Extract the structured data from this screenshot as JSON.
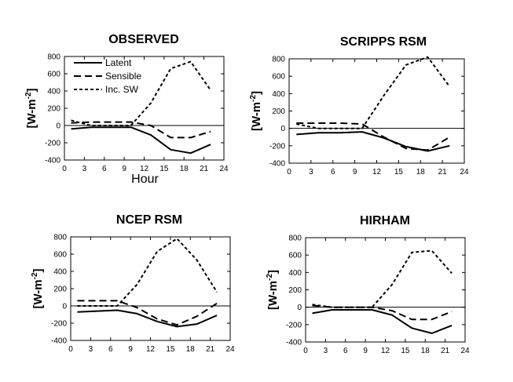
{
  "chart_data": [
    {
      "type": "line",
      "title": "OBSERVED",
      "xlabel": "Hour",
      "ylabel": "[W-m-2]",
      "xlim": [
        0,
        24
      ],
      "ylim": [
        -400,
        800
      ],
      "xticks": [
        "0",
        "3",
        "6",
        "9",
        "12",
        "15",
        "18",
        "21",
        "24"
      ],
      "yticks": [
        "-400",
        "-200",
        "0",
        "200",
        "400",
        "600",
        "800"
      ],
      "legend": "top-left",
      "series": [
        {
          "name": "Latent",
          "style": "solid",
          "x": [
            1,
            4,
            7,
            10,
            13,
            16,
            19,
            22
          ],
          "y": [
            -40,
            -20,
            -20,
            -20,
            -110,
            -280,
            -320,
            -220
          ]
        },
        {
          "name": "Sensible",
          "style": "dashed",
          "x": [
            1,
            4,
            7,
            10,
            13,
            16,
            19,
            22
          ],
          "y": [
            30,
            40,
            40,
            40,
            0,
            -140,
            -140,
            -70
          ]
        },
        {
          "name": "Inc. SW",
          "style": "dotted",
          "x": [
            1,
            4,
            7,
            10,
            13,
            16,
            19,
            22
          ],
          "y": [
            60,
            0,
            0,
            0,
            260,
            660,
            740,
            410
          ]
        }
      ]
    },
    {
      "type": "line",
      "title": "SCRIPPS RSM",
      "ylabel": "[W-m-2]",
      "xlim": [
        0,
        24
      ],
      "ylim": [
        -400,
        800
      ],
      "xticks": [
        "0",
        "3",
        "6",
        "9",
        "12",
        "15",
        "18",
        "21",
        "24"
      ],
      "yticks": [
        "-400",
        "-200",
        "0",
        "200",
        "400",
        "600",
        "800"
      ],
      "series": [
        {
          "x": [
            1,
            4,
            7,
            10,
            13,
            16,
            19,
            22
          ],
          "y": [
            -70,
            -50,
            -50,
            -40,
            -110,
            -210,
            -260,
            -200
          ]
        },
        {
          "x": [
            1,
            4,
            7,
            10,
            13,
            16,
            19,
            22
          ],
          "y": [
            60,
            60,
            60,
            50,
            -100,
            -230,
            -250,
            -100
          ]
        },
        {
          "x": [
            1,
            4,
            7,
            10,
            13,
            16,
            19,
            22
          ],
          "y": [
            50,
            0,
            0,
            0,
            380,
            730,
            820,
            480
          ]
        }
      ]
    },
    {
      "type": "line",
      "title": "NCEP RSM",
      "ylabel": "[W-m-2]",
      "xlim": [
        0,
        24
      ],
      "ylim": [
        -400,
        800
      ],
      "xticks": [
        "0",
        "3",
        "6",
        "9",
        "12",
        "15",
        "18",
        "21",
        "24"
      ],
      "yticks": [
        "-400",
        "-200",
        "0",
        "200",
        "400",
        "600",
        "800"
      ],
      "series": [
        {
          "x": [
            1,
            4,
            7,
            10,
            13,
            16,
            19,
            22
          ],
          "y": [
            -70,
            -60,
            -50,
            -90,
            -180,
            -240,
            -210,
            -110
          ]
        },
        {
          "x": [
            1,
            4,
            7,
            10,
            13,
            16,
            19,
            22
          ],
          "y": [
            60,
            60,
            60,
            -20,
            -150,
            -220,
            -120,
            30
          ]
        },
        {
          "x": [
            1,
            4,
            7,
            10,
            13,
            16,
            19,
            22
          ],
          "y": [
            0,
            0,
            0,
            250,
            630,
            780,
            530,
            160
          ]
        }
      ]
    },
    {
      "type": "line",
      "title": "HIRHAM",
      "ylabel": "[W-m-2]",
      "xlim": [
        0,
        24
      ],
      "ylim": [
        -400,
        800
      ],
      "xticks": [
        "0",
        "3",
        "6",
        "9",
        "12",
        "15",
        "18",
        "21",
        "24"
      ],
      "yticks": [
        "-400",
        "-200",
        "0",
        "200",
        "400",
        "600",
        "800"
      ],
      "series": [
        {
          "x": [
            1,
            4,
            7,
            10,
            13,
            16,
            19,
            22
          ],
          "y": [
            -70,
            -30,
            -30,
            -30,
            -90,
            -240,
            -300,
            -210
          ]
        },
        {
          "x": [
            1,
            4,
            7,
            10,
            13,
            16,
            19,
            22
          ],
          "y": [
            20,
            0,
            0,
            0,
            -40,
            -140,
            -140,
            -50
          ]
        },
        {
          "x": [
            1,
            4,
            7,
            10,
            13,
            16,
            19,
            22
          ],
          "y": [
            30,
            0,
            0,
            0,
            260,
            630,
            650,
            390
          ]
        }
      ]
    }
  ]
}
